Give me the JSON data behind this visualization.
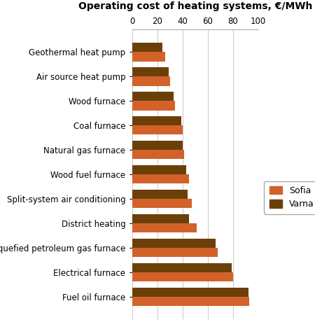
{
  "title": "Operating cost of heating systems, €/MWh",
  "categories": [
    "Geothermal heat pump",
    "Air source heat pump",
    "Wood furnace",
    "Coal furnace",
    "Natural gas furnace",
    "Wood fuel furnace",
    "Split-system air conditioning",
    "District heating",
    "Liquefied petroleum gas furnace",
    "Electrical furnace",
    "Fuel oil furnace"
  ],
  "sofia_values": [
    26,
    30,
    34,
    40,
    41,
    45,
    47,
    51,
    68,
    80,
    93
  ],
  "varna_values": [
    24,
    29,
    33,
    39,
    40,
    43,
    44,
    45,
    66,
    79,
    92
  ],
  "sofia_color": "#D2622A",
  "varna_color": "#6B4008",
  "xlim": [
    0,
    100
  ],
  "xticks": [
    0,
    20,
    40,
    60,
    80,
    100
  ],
  "legend_labels": [
    "Sofia",
    "Varna"
  ],
  "background_color": "#ffffff",
  "bar_height": 0.38,
  "title_fontsize": 10,
  "label_fontsize": 8.5,
  "tick_fontsize": 8.5,
  "legend_fontsize": 9
}
